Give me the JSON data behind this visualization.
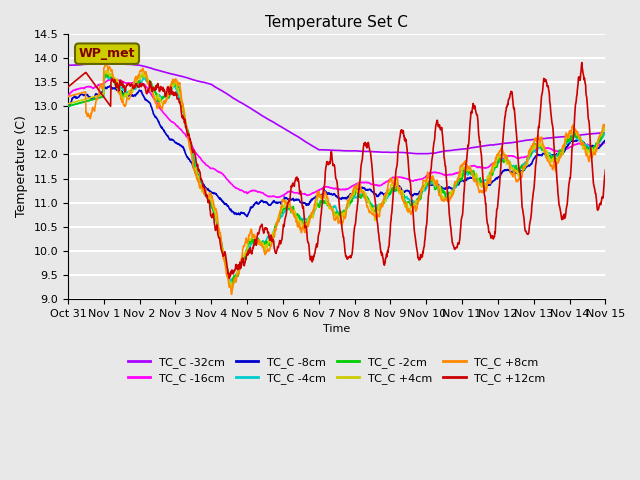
{
  "title": "Temperature Set C",
  "xlabel": "Time",
  "ylabel": "Temperature (C)",
  "ylim": [
    9.0,
    14.5
  ],
  "yticks": [
    9.0,
    9.5,
    10.0,
    10.5,
    11.0,
    11.5,
    12.0,
    12.5,
    13.0,
    13.5,
    14.0,
    14.5
  ],
  "x_labels": [
    "Oct 31",
    "Nov 1",
    "Nov 2",
    "Nov 3",
    "Nov 4",
    "Nov 5",
    "Nov 6",
    "Nov 7",
    "Nov 8",
    "Nov 9",
    "Nov 10",
    "Nov 11",
    "Nov 12",
    "Nov 13",
    "Nov 14",
    "Nov 15"
  ],
  "n_points": 1440,
  "background_color": "#e8e8e8",
  "plot_bg_color": "#e8e8e8",
  "grid_color": "white",
  "series": [
    {
      "label": "TC_C -32cm",
      "color": "#aa00ff"
    },
    {
      "label": "TC_C -16cm",
      "color": "#ff00ff"
    },
    {
      "label": "TC_C -8cm",
      "color": "#0000cc"
    },
    {
      "label": "TC_C -4cm",
      "color": "#00cccc"
    },
    {
      "label": "TC_C -2cm",
      "color": "#00cc00"
    },
    {
      "label": "TC_C +4cm",
      "color": "#cccc00"
    },
    {
      "label": "TC_C +8cm",
      "color": "#ff8800"
    },
    {
      "label": "TC_C +12cm",
      "color": "#cc0000"
    }
  ],
  "wp_met_box_color": "#cccc00",
  "wp_met_text_color": "#800000"
}
